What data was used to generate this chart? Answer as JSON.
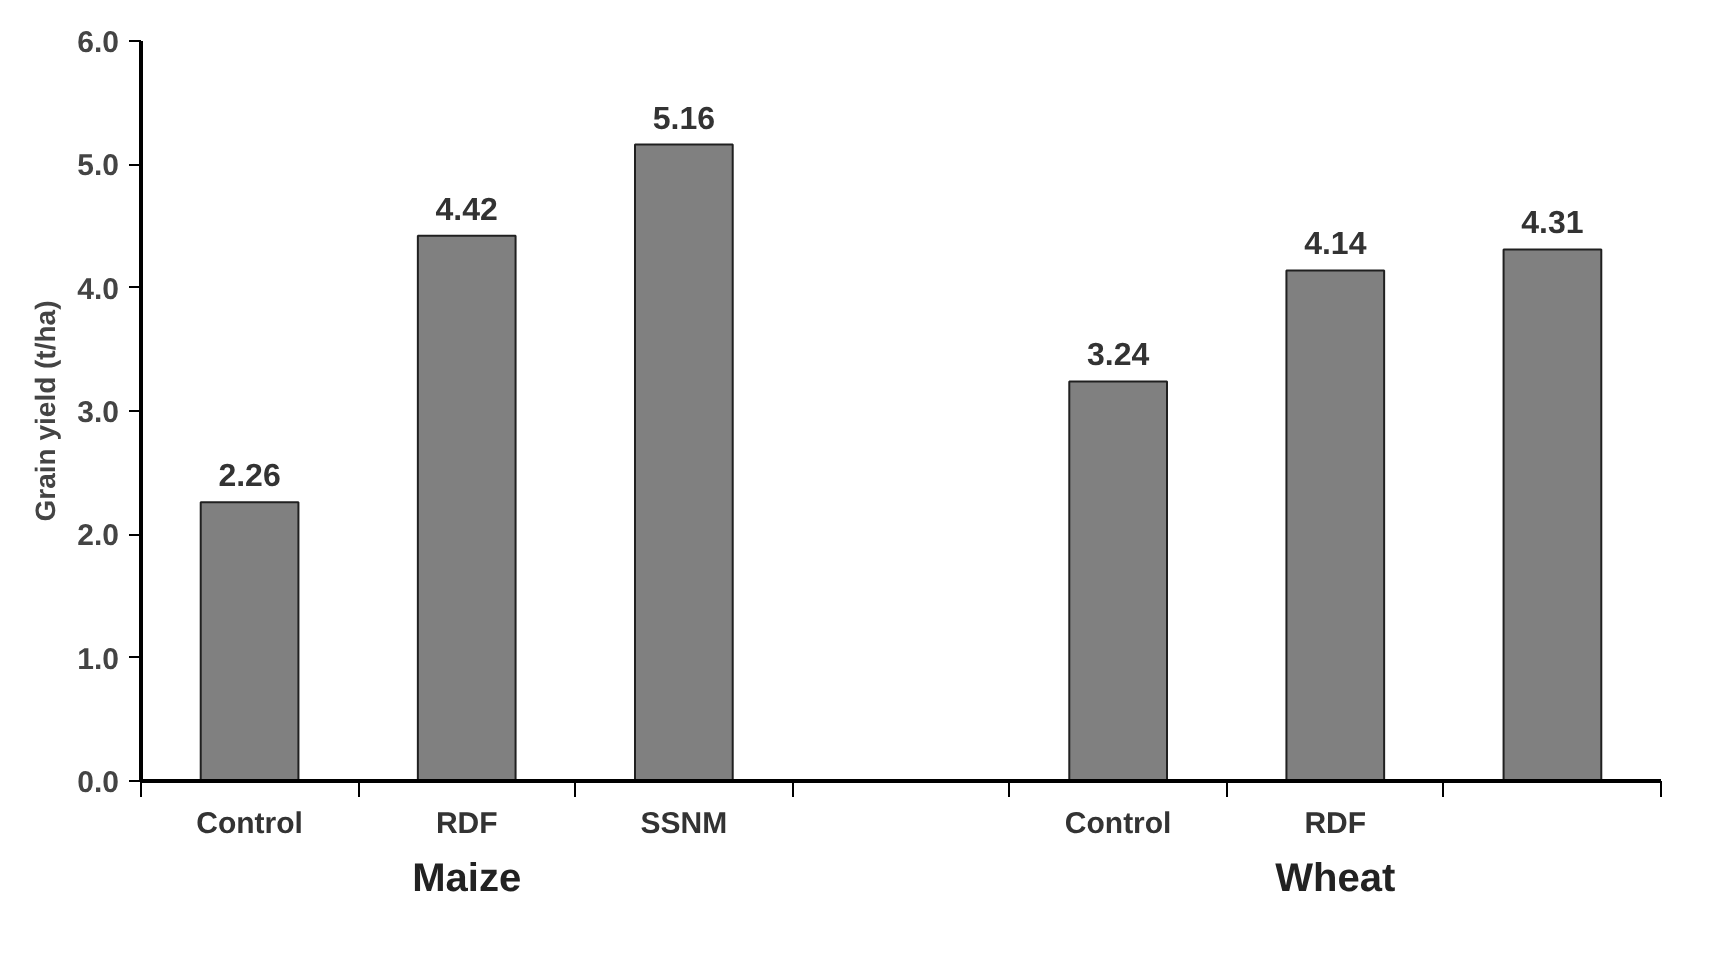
{
  "chart_data": {
    "type": "bar",
    "ylabel": "Grain yield (t/ha)",
    "categories": [
      "Control",
      "RDF",
      "SSNM",
      null,
      "Control",
      "RDF",
      null
    ],
    "values": [
      2.26,
      4.42,
      5.16,
      null,
      3.24,
      4.14,
      4.31
    ],
    "color": "#808080",
    "data_labels": true,
    "grid": false,
    "ylim": [
      0,
      6
    ],
    "yticks": [
      {
        "value": 0,
        "label": "0.0"
      },
      {
        "value": 1,
        "label": "1.0"
      },
      {
        "value": 2,
        "label": "2.0"
      },
      {
        "value": 3,
        "label": "3.0"
      },
      {
        "value": 4,
        "label": "4.0"
      },
      {
        "value": 5,
        "label": "5.0"
      },
      {
        "value": 6,
        "label": "6.0"
      }
    ],
    "annotations": [
      "Maize",
      "Wheat"
    ]
  }
}
